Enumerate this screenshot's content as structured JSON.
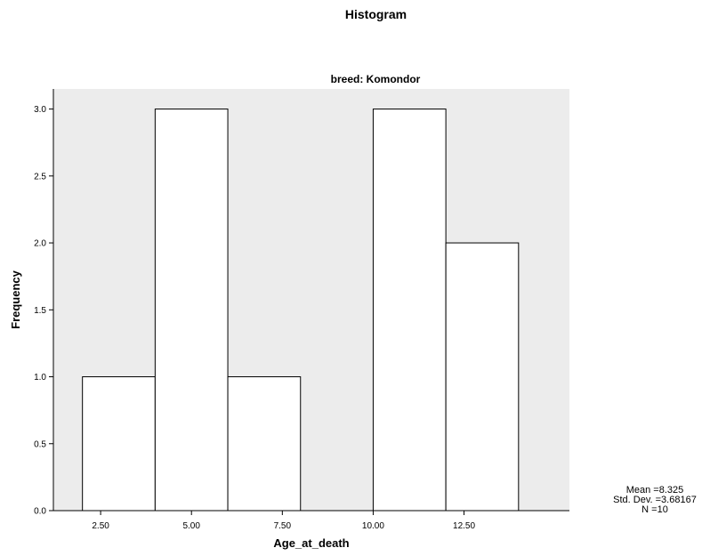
{
  "chart_data": {
    "type": "histogram",
    "title": "Histogram",
    "subtitle": "breed: Komondor",
    "xlabel": "Age_at_death",
    "ylabel": "Frequency",
    "xlim": [
      1.2,
      15.4
    ],
    "ylim": [
      0,
      3.15
    ],
    "x_ticks": [
      "2.50",
      "5.00",
      "7.50",
      "10.00",
      "12.50"
    ],
    "x_tick_values": [
      2.5,
      5.0,
      7.5,
      10.0,
      12.5
    ],
    "y_ticks": [
      "0.0",
      "0.5",
      "1.0",
      "1.5",
      "2.0",
      "2.5",
      "3.0"
    ],
    "y_tick_values": [
      0.0,
      0.5,
      1.0,
      1.5,
      2.0,
      2.5,
      3.0
    ],
    "bins": [
      {
        "start": 2,
        "end": 4,
        "value": 1
      },
      {
        "start": 4,
        "end": 6,
        "value": 3
      },
      {
        "start": 6,
        "end": 8,
        "value": 1
      },
      {
        "start": 8,
        "end": 10,
        "value": 0
      },
      {
        "start": 10,
        "end": 12,
        "value": 3
      },
      {
        "start": 12,
        "end": 14,
        "value": 2
      }
    ],
    "plot_background": "#ececec",
    "bar_fill": "#ffffff",
    "bar_stroke": "#000000",
    "grid": false,
    "legend": "none",
    "stats": {
      "mean": "Mean =8.325",
      "std_dev": "Std. Dev. =3.68167",
      "n": "N =10"
    }
  }
}
